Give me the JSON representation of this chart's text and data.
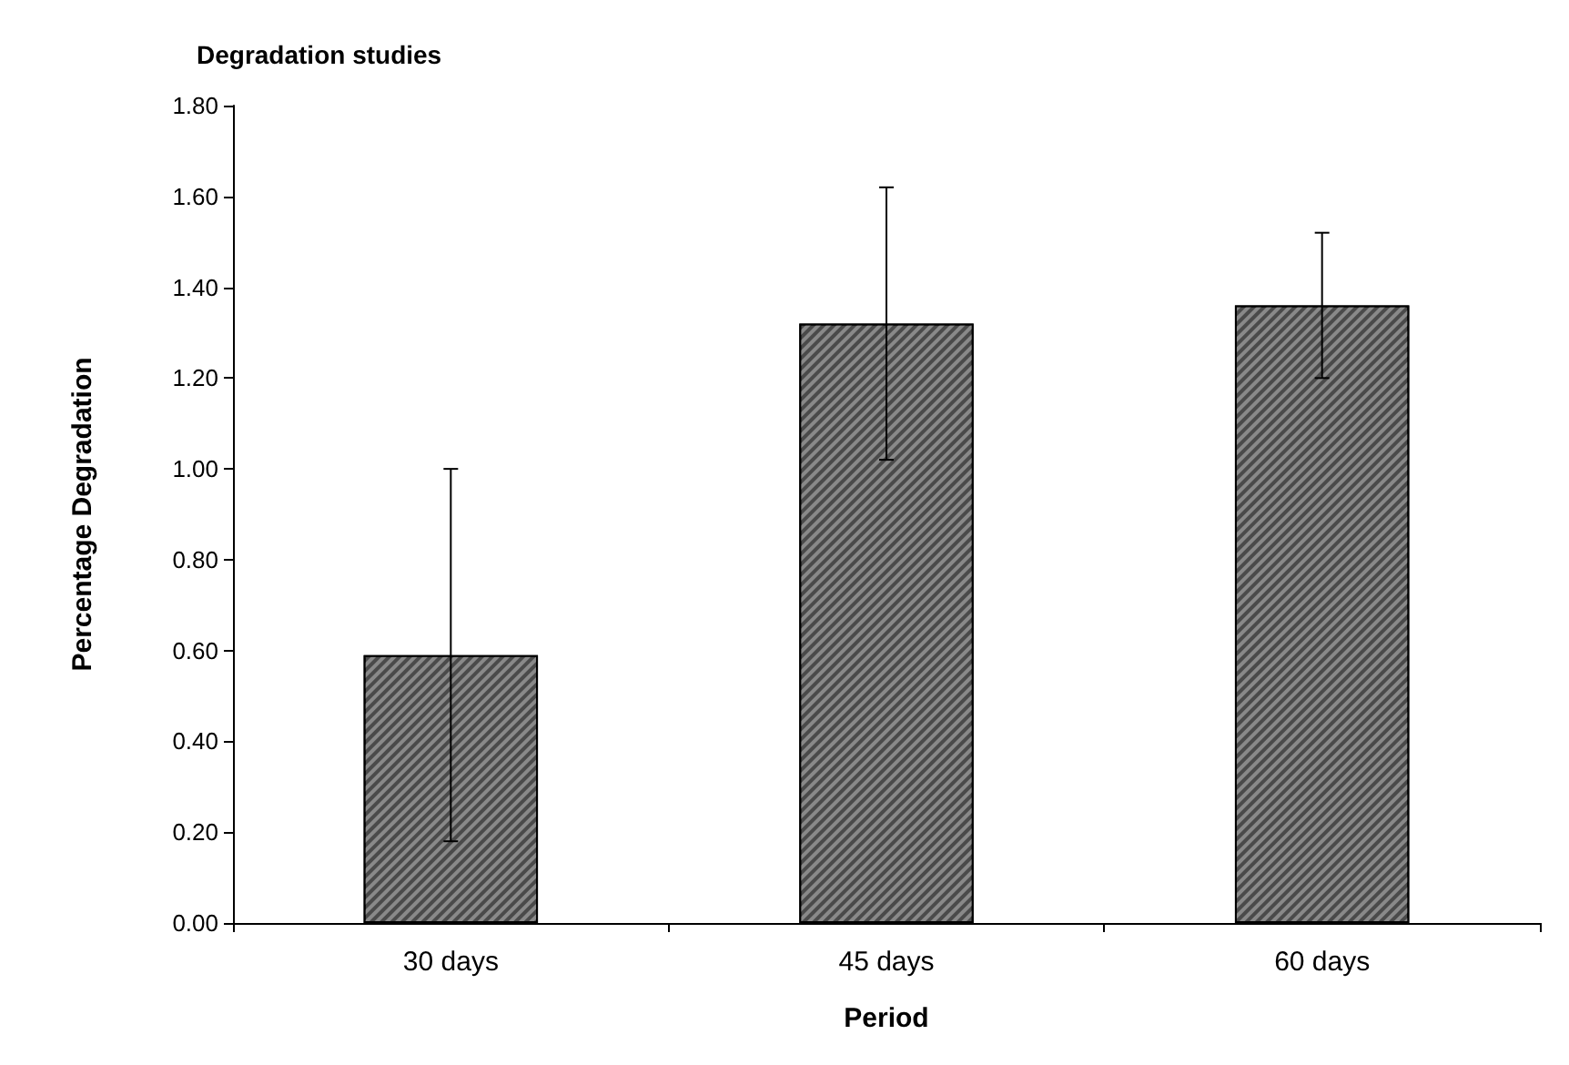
{
  "chart_data": {
    "type": "bar",
    "title": "Degradation studies",
    "xlabel": "Period",
    "ylabel": "Percentage Degradation",
    "categories": [
      "30 days",
      "45 days",
      "60 days"
    ],
    "values": [
      0.59,
      1.32,
      1.36
    ],
    "errors": [
      0.41,
      0.3,
      0.16
    ],
    "color": "#4a4a4a",
    "ylim": [
      0,
      1.8
    ],
    "yticks": [
      {
        "value": 0,
        "label": "0.00"
      },
      {
        "value": 0.2,
        "label": "0.20"
      },
      {
        "value": 0.4,
        "label": "0.40"
      },
      {
        "value": 0.6,
        "label": "0.60"
      },
      {
        "value": 0.8,
        "label": "0.80"
      },
      {
        "value": 1.0,
        "label": "1.00"
      },
      {
        "value": 1.2,
        "label": "1.20"
      },
      {
        "value": 1.4,
        "label": "1.40"
      },
      {
        "value": 1.6,
        "label": "1.60"
      },
      {
        "value": 1.8,
        "label": "1.80"
      }
    ],
    "grid": false
  }
}
